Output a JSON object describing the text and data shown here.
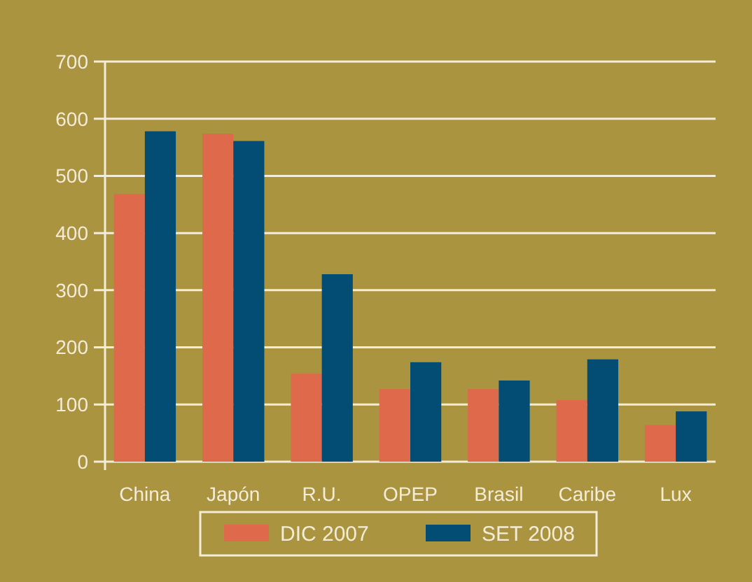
{
  "chart_data": {
    "type": "bar",
    "categories": [
      "China",
      "Japón",
      "R.U.",
      "OPEP",
      "Brasil",
      "Caribe",
      "Lux"
    ],
    "series": [
      {
        "name": "DIC 2007",
        "color": "#de6a4b",
        "values": [
          468,
          574,
          154,
          127,
          127,
          108,
          64
        ]
      },
      {
        "name": "SET 2008",
        "color": "#034c74",
        "values": [
          578,
          561,
          328,
          174,
          142,
          179,
          88
        ]
      }
    ],
    "ylim": [
      0,
      700
    ],
    "yticks": [
      0,
      100,
      200,
      300,
      400,
      500,
      600,
      700
    ],
    "grid": "y",
    "legend": "bottom"
  }
}
